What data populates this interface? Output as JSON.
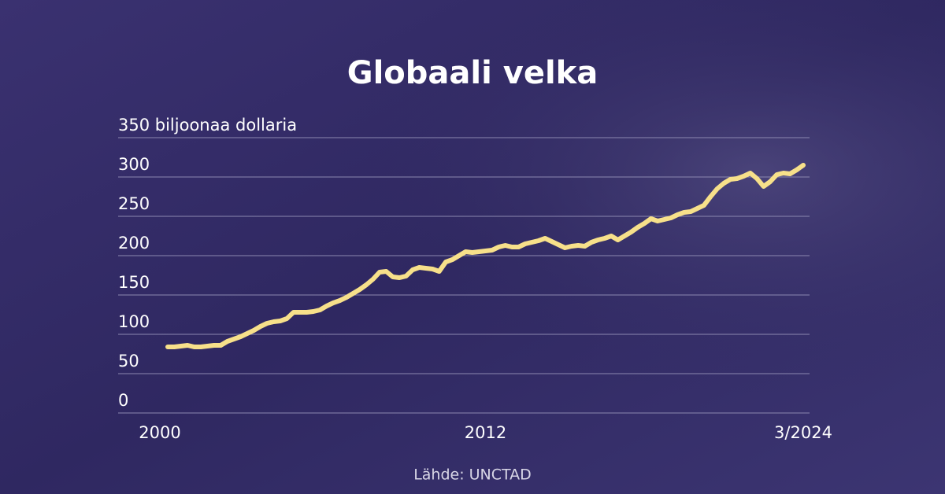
{
  "chart_data": {
    "type": "line",
    "title": "Globaali velka",
    "source": "Lähde: UNCTAD",
    "categories": [
      "2000",
      null,
      null,
      null,
      null,
      null,
      null,
      null,
      null,
      null,
      null,
      null,
      null,
      null,
      null,
      null,
      null,
      null,
      null,
      null,
      null,
      null,
      null,
      null,
      null,
      null,
      null,
      null,
      null,
      null,
      null,
      null,
      null,
      null,
      null,
      null,
      null,
      null,
      null,
      null,
      null,
      null,
      null,
      null,
      null,
      null,
      null,
      null,
      "2012",
      null,
      null,
      null,
      null,
      null,
      null,
      null,
      null,
      null,
      null,
      null,
      null,
      null,
      null,
      null,
      null,
      null,
      null,
      null,
      null,
      null,
      null,
      null,
      null,
      null,
      null,
      null,
      null,
      null,
      null,
      null,
      null,
      null,
      null,
      null,
      null,
      null,
      null,
      null,
      null,
      null,
      null,
      null,
      null,
      null,
      null,
      null,
      "3/2024"
    ],
    "values": [
      84,
      84,
      85,
      86,
      84,
      84,
      85,
      86,
      86,
      91,
      94,
      97,
      101,
      105,
      110,
      114,
      116,
      117,
      120,
      128,
      128,
      128,
      129,
      131,
      136,
      140,
      143,
      147,
      152,
      157,
      163,
      170,
      179,
      180,
      173,
      172,
      174,
      182,
      185,
      184,
      183,
      180,
      192,
      195,
      200,
      205,
      204,
      205,
      206,
      207,
      211,
      213,
      211,
      211,
      215,
      217,
      219,
      222,
      218,
      214,
      210,
      212,
      213,
      212,
      217,
      220,
      222,
      225,
      220,
      225,
      230,
      236,
      241,
      247,
      244,
      246,
      248,
      252,
      255,
      256,
      260,
      264,
      275,
      285,
      292,
      297,
      298,
      301,
      305,
      298,
      288,
      294,
      303,
      305,
      304,
      309,
      315
    ],
    "color": "#f7e08a",
    "ylim": [
      0,
      350
    ],
    "yticks": [
      0,
      50,
      100,
      150,
      200,
      250,
      300,
      {
        "value": 350,
        "label": "350 biljoonaa dollaria"
      }
    ],
    "grid": true
  }
}
